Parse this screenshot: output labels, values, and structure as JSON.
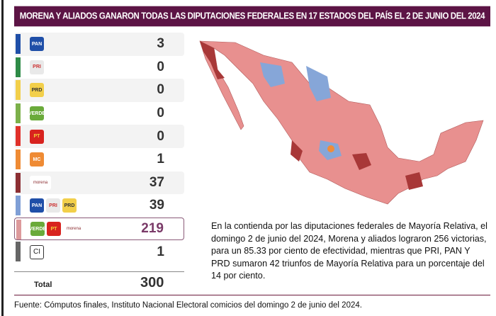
{
  "title": "MORENA Y ALIADOS GANARON TODAS LAS DIPUTACIONES FEDERALES  EN 17 ESTADOS DEL PAÍS EL 2 DE JUNIO DEL 2024",
  "rows": [
    {
      "party": "PAN",
      "logos": [
        "PAN"
      ],
      "value": "3",
      "color": "#1f4fa8"
    },
    {
      "party": "PRI",
      "logos": [
        "PRI"
      ],
      "value": "0",
      "color": "#2e8b47"
    },
    {
      "party": "PRD",
      "logos": [
        "PRD"
      ],
      "value": "0",
      "color": "#f2cf4a"
    },
    {
      "party": "PVEM",
      "logos": [
        "VERDE"
      ],
      "value": "0",
      "color": "#7cb04a"
    },
    {
      "party": "PT",
      "logos": [
        "PT"
      ],
      "value": "0",
      "color": "#e0312a"
    },
    {
      "party": "MC",
      "logos": [
        "MC"
      ],
      "value": "1",
      "color": "#ef8b34"
    },
    {
      "party": "Morena",
      "logos": [
        "morena"
      ],
      "value": "37",
      "color": "#8c2f33"
    },
    {
      "party": "PAN-PRI-PRD",
      "logos": [
        "PAN",
        "PRI",
        "PRD"
      ],
      "value": "39",
      "color": "#7f9fd6"
    },
    {
      "party": "PVEM-PT-Morena",
      "logos": [
        "VERDE",
        "PT",
        "morena"
      ],
      "value": "219",
      "color": "#dd9a9c"
    },
    {
      "party": "Independiente",
      "logos": [
        "CI"
      ],
      "value": "1",
      "color": "#666666"
    }
  ],
  "total_label": "Total",
  "total_value": "300",
  "paragraph": "En la contienda por las diputaciones federales de Mayoría Relativa, el domingo 2 de junio del 2024, Morena y aliados lograron 256 victorias, para un 85.33 por ciento de efectividad, mientras que PRI, PAN Y PRD sumaron 42 triunfos de Mayoría Relativa para un porcentaje del 14 por ciento.",
  "footnote": "Fuente: Cómputos finales, Instituto Nacional Electoral comicios del domingo 2 de junio del 2024.",
  "map_colors": {
    "morena_allies": "#e8908f",
    "morena": "#a83838",
    "pan_pri_prd": "#86a6d8",
    "mc": "#f08c3a"
  }
}
